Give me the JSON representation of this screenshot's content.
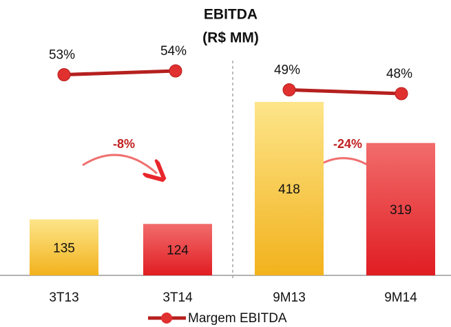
{
  "chart_data": {
    "type": "bar",
    "title": "EBITDA",
    "subtitle": "(R$ MM)",
    "categories": [
      "3T13",
      "3T14",
      "9M13",
      "9M14"
    ],
    "values": [
      135,
      124,
      418,
      319
    ],
    "colors": [
      "#f7c431",
      "#e8262b",
      "#f7c431",
      "#e8262b"
    ],
    "line": {
      "name": "Margem EBITDA",
      "color": "#b5201e",
      "values": [
        53,
        54,
        49,
        48
      ],
      "value_labels": [
        "53%",
        "54%",
        "49%",
        "48%"
      ]
    },
    "annotations": [
      "-8%",
      "-24%"
    ]
  }
}
